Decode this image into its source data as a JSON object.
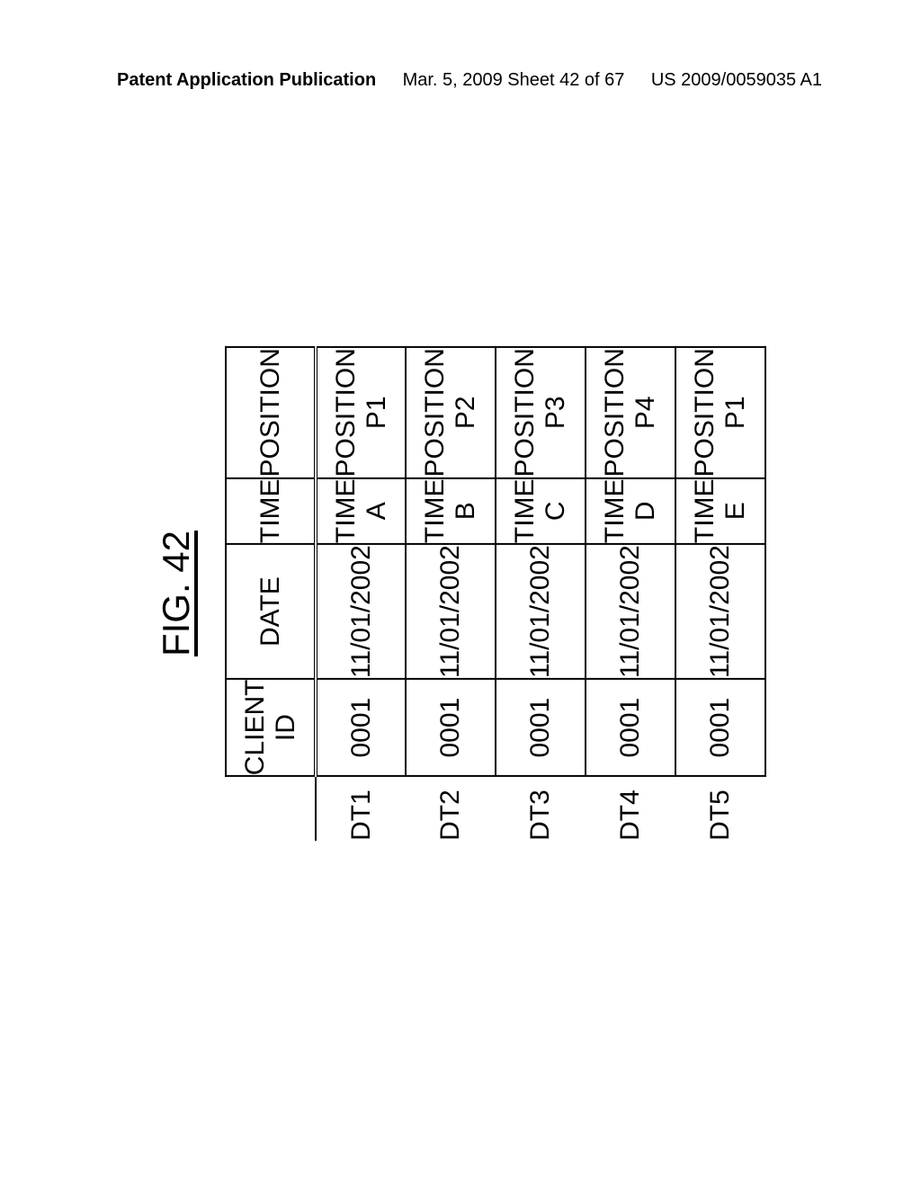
{
  "header": {
    "left": "Patent Application Publication",
    "center": "Mar. 5, 2009  Sheet 42 of 67",
    "right": "US 2009/0059035 A1"
  },
  "figure_label": "FIG. 42",
  "table": {
    "columns": [
      "CLIENT ID",
      "DATE",
      "TIME",
      "POSITION"
    ],
    "rows": [
      {
        "label": "DT1",
        "client_id": "0001",
        "date": "11/01/2002",
        "time": "TIME A",
        "position": "POSITION P1"
      },
      {
        "label": "DT2",
        "client_id": "0001",
        "date": "11/01/2002",
        "time": "TIME B",
        "position": "POSITION P2"
      },
      {
        "label": "DT3",
        "client_id": "0001",
        "date": "11/01/2002",
        "time": "TIME C",
        "position": "POSITION P3"
      },
      {
        "label": "DT4",
        "client_id": "0001",
        "date": "11/01/2002",
        "time": "TIME D",
        "position": "POSITION P4"
      },
      {
        "label": "DT5",
        "client_id": "0001",
        "date": "11/01/2002",
        "time": "TIME E",
        "position": "POSITION P1"
      }
    ]
  }
}
